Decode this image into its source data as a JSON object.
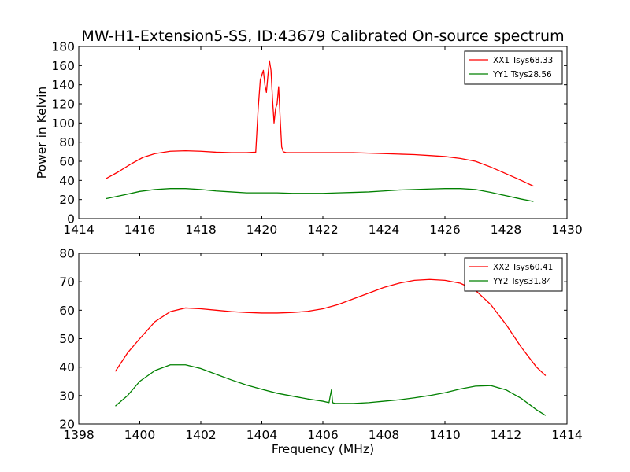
{
  "chart_data": [
    {
      "type": "line",
      "title": "MW-H1-Extension5-SS, ID:43679 Calibrated On-source spectrum",
      "xlabel": "",
      "ylabel": "Power in Kelvin",
      "xlim": [
        1414,
        1430
      ],
      "ylim": [
        0,
        180
      ],
      "xticks": [
        1414,
        1416,
        1418,
        1420,
        1422,
        1424,
        1426,
        1428,
        1430
      ],
      "yticks": [
        0,
        20,
        40,
        60,
        80,
        100,
        120,
        140,
        160,
        180
      ],
      "legend": "top-right",
      "grid": false,
      "series": [
        {
          "name": "XX1 Tsys68.33",
          "color": "#ff0000",
          "x": [
            1414.9,
            1415.3,
            1415.7,
            1416.1,
            1416.5,
            1417.0,
            1417.5,
            1418.0,
            1418.5,
            1419.0,
            1419.5,
            1419.8,
            1419.88,
            1419.95,
            1420.0,
            1420.05,
            1420.1,
            1420.15,
            1420.2,
            1420.25,
            1420.3,
            1420.35,
            1420.4,
            1420.45,
            1420.5,
            1420.55,
            1420.6,
            1420.65,
            1420.7,
            1420.8,
            1421.0,
            1421.5,
            1422.0,
            1422.5,
            1423.0,
            1423.5,
            1424.0,
            1424.5,
            1425.0,
            1425.5,
            1426.0,
            1426.5,
            1427.0,
            1427.5,
            1428.0,
            1428.5,
            1428.9
          ],
          "y": [
            42,
            49,
            57,
            64,
            68,
            70.5,
            71,
            70.5,
            69.5,
            69,
            69,
            69.5,
            115,
            145,
            150,
            155,
            140,
            132,
            150,
            165,
            155,
            125,
            100,
            115,
            120,
            138,
            105,
            75,
            70,
            69,
            69,
            69,
            69,
            69,
            69,
            68.5,
            68,
            67.5,
            67,
            66,
            65,
            63,
            60,
            54,
            47,
            40,
            34
          ]
        },
        {
          "name": "YY1 Tsys28.56",
          "color": "#008000",
          "x": [
            1414.9,
            1415.5,
            1416.0,
            1416.5,
            1417.0,
            1417.5,
            1418.0,
            1418.5,
            1419.0,
            1419.5,
            1420.0,
            1420.5,
            1421.0,
            1421.5,
            1422.0,
            1422.5,
            1423.0,
            1423.5,
            1424.0,
            1424.5,
            1425.0,
            1425.5,
            1426.0,
            1426.5,
            1427.0,
            1427.5,
            1428.0,
            1428.5,
            1428.9
          ],
          "y": [
            21,
            25,
            28.5,
            30.5,
            31.5,
            31.5,
            30.5,
            29,
            28,
            27,
            27,
            27,
            26.5,
            26.5,
            26.5,
            27,
            27.5,
            28,
            29,
            30,
            30.5,
            31,
            31.5,
            31.5,
            30.5,
            27.5,
            24,
            20.5,
            18
          ]
        }
      ]
    },
    {
      "type": "line",
      "title": "",
      "xlabel": "Frequency (MHz)",
      "ylabel": "",
      "xlim": [
        1398,
        1414
      ],
      "ylim": [
        20,
        80
      ],
      "xticks": [
        1398,
        1400,
        1402,
        1404,
        1406,
        1408,
        1410,
        1412,
        1414
      ],
      "yticks": [
        20,
        30,
        40,
        50,
        60,
        70,
        80
      ],
      "legend": "top-right",
      "grid": false,
      "series": [
        {
          "name": "XX2 Tsys60.41",
          "color": "#ff0000",
          "x": [
            1399.2,
            1399.6,
            1400.0,
            1400.5,
            1401.0,
            1401.5,
            1402.0,
            1402.5,
            1403.0,
            1403.5,
            1404.0,
            1404.5,
            1405.0,
            1405.5,
            1406.0,
            1406.5,
            1407.0,
            1407.5,
            1408.0,
            1408.5,
            1409.0,
            1409.5,
            1410.0,
            1410.5,
            1411.0,
            1411.5,
            1412.0,
            1412.5,
            1413.0,
            1413.3
          ],
          "y": [
            38.5,
            45,
            50,
            56,
            59.5,
            60.8,
            60.5,
            60,
            59.5,
            59.2,
            59,
            59,
            59.2,
            59.6,
            60.5,
            62,
            64,
            66,
            68,
            69.5,
            70.5,
            70.8,
            70.5,
            69.5,
            67,
            62,
            55,
            47,
            40,
            37
          ]
        },
        {
          "name": "YY2 Tsys31.84",
          "color": "#008000",
          "x": [
            1399.2,
            1399.6,
            1400.0,
            1400.5,
            1401.0,
            1401.5,
            1402.0,
            1402.5,
            1403.0,
            1403.5,
            1404.0,
            1404.5,
            1405.0,
            1405.5,
            1406.0,
            1406.2,
            1406.28,
            1406.32,
            1406.4,
            1406.6,
            1407.0,
            1407.5,
            1408.0,
            1408.5,
            1409.0,
            1409.5,
            1410.0,
            1410.5,
            1411.0,
            1411.5,
            1412.0,
            1412.5,
            1413.0,
            1413.3
          ],
          "y": [
            26.3,
            30,
            35,
            38.8,
            40.8,
            40.8,
            39.5,
            37.5,
            35.5,
            33.7,
            32.2,
            30.8,
            29.8,
            28.8,
            28,
            27.5,
            32,
            27.5,
            27.2,
            27.2,
            27.2,
            27.5,
            28,
            28.5,
            29.2,
            30,
            31,
            32.3,
            33.3,
            33.5,
            32,
            29,
            25,
            23
          ]
        }
      ]
    }
  ]
}
